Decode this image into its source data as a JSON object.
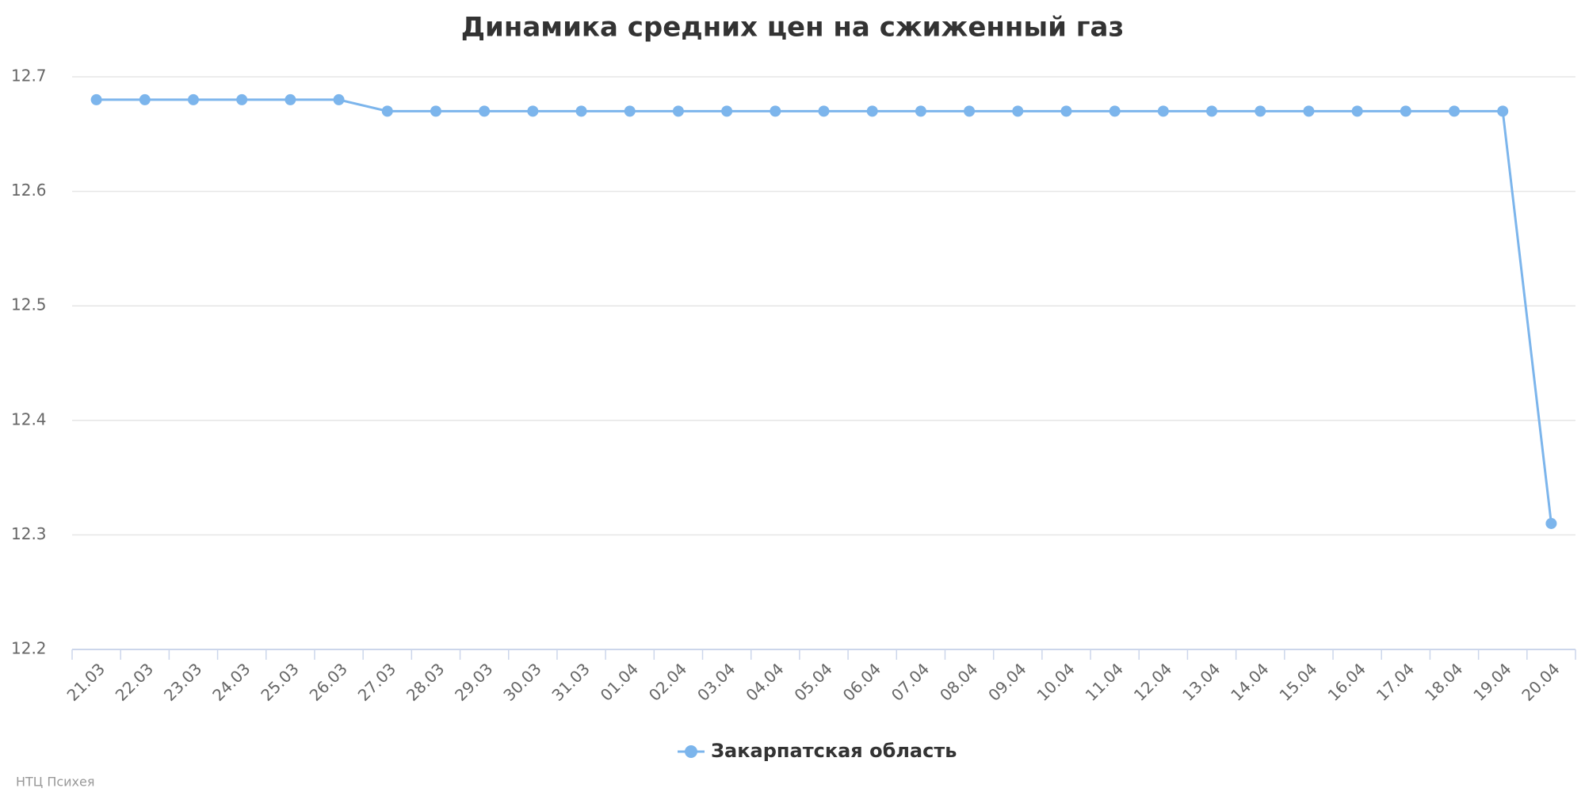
{
  "chart_data": {
    "type": "line",
    "title": "Динамика средних цен на сжиженный газ",
    "categories": [
      "21.03",
      "22.03",
      "23.03",
      "24.03",
      "25.03",
      "26.03",
      "27.03",
      "28.03",
      "29.03",
      "30.03",
      "31.03",
      "01.04",
      "02.04",
      "03.04",
      "04.04",
      "05.04",
      "06.04",
      "07.04",
      "08.04",
      "09.04",
      "10.04",
      "11.04",
      "12.04",
      "13.04",
      "14.04",
      "15.04",
      "16.04",
      "17.04",
      "18.04",
      "19.04",
      "20.04"
    ],
    "series": [
      {
        "name": "Закарпатская область",
        "color": "#7cb5ec",
        "values": [
          12.68,
          12.68,
          12.68,
          12.68,
          12.68,
          12.68,
          12.67,
          12.67,
          12.67,
          12.67,
          12.67,
          12.67,
          12.67,
          12.67,
          12.67,
          12.67,
          12.67,
          12.67,
          12.67,
          12.67,
          12.67,
          12.67,
          12.67,
          12.67,
          12.67,
          12.67,
          12.67,
          12.67,
          12.67,
          12.67,
          12.31
        ]
      }
    ],
    "ylim": [
      12.2,
      12.7
    ],
    "yticks": [
      12.2,
      12.3,
      12.4,
      12.5,
      12.6,
      12.7
    ],
    "grid": true,
    "legend": "bottom",
    "credits": "НТЦ Психея"
  }
}
